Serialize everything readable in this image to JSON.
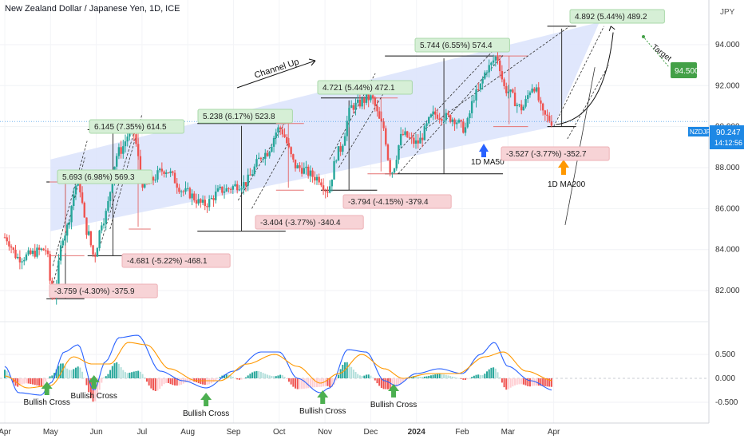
{
  "header": {
    "title": "New Zealand Dollar / Japanese Yen, 1D, ICE",
    "currency": "JPY"
  },
  "price_tag": {
    "symbol": "NZDJPY",
    "price": "90.247",
    "countdown": "14:12:56"
  },
  "target_tag": {
    "label": "Target",
    "value": "94.500"
  },
  "annotations": {
    "channel_up": "Channel Up",
    "ma50": "1D MA50",
    "ma200": "1D MA200",
    "bullish_cross": "Bullish Cross"
  },
  "measures": {
    "rises": [
      "5.693 (6.98%) 569.3",
      "6.145 (7.35%) 614.5",
      "5.238 (6.17%) 523.8",
      "4.721 (5.44%) 472.1",
      "5.744 (6.55%) 574.4",
      "4.892 (5.44%) 489.2"
    ],
    "drops": [
      "-3.759 (-4.30%) -375.9",
      "-4.681 (-5.22%) -468.1",
      "-3.404 (-3.77%) -340.4",
      "-3.794 (-4.15%) -379.4",
      "-3.527 (-3.77%) -352.7"
    ]
  },
  "colors": {
    "up": "#26a69a",
    "down": "#ef5350",
    "channel": "#dbe3fb",
    "ma_fast": "#2962ff",
    "ma_slow": "#ff9800",
    "hist_up": "#26a69a",
    "hist_down": "#ef5350",
    "tag_blue": "#2962ff",
    "tag_green": "#43a047",
    "arrow_green": "#4caf50"
  },
  "chart_data": [
    {
      "type": "candlestick",
      "title": "New Zealand Dollar / Japanese Yen, 1D, ICE",
      "ylabel": "JPY",
      "x_ticks": [
        "Apr",
        "May",
        "Jun",
        "Jul",
        "Aug",
        "Sep",
        "Oct",
        "Nov",
        "Dec",
        "2024",
        "Feb",
        "Mar",
        "Apr"
      ],
      "y_ticks": [
        "82.000",
        "84.000",
        "86.000",
        "88.000",
        "90.000",
        "92.000",
        "94.000"
      ],
      "ylim": [
        80.6,
        95.4
      ],
      "anchors": [
        {
          "x": 0.0,
          "y": 84.6
        },
        {
          "x": 0.3,
          "y": 83.6
        },
        {
          "x": 0.9,
          "y": 84.0
        },
        {
          "x": 1.05,
          "y": 81.6
        },
        {
          "x": 1.3,
          "y": 84.8
        },
        {
          "x": 1.6,
          "y": 87.3
        },
        {
          "x": 1.8,
          "y": 84.9
        },
        {
          "x": 1.95,
          "y": 83.7
        },
        {
          "x": 2.15,
          "y": 85.5
        },
        {
          "x": 2.5,
          "y": 88.8
        },
        {
          "x": 2.78,
          "y": 89.85
        },
        {
          "x": 3.05,
          "y": 87.1
        },
        {
          "x": 3.5,
          "y": 87.9
        },
        {
          "x": 3.95,
          "y": 86.8
        },
        {
          "x": 4.35,
          "y": 86.2
        },
        {
          "x": 4.75,
          "y": 86.9
        },
        {
          "x": 5.2,
          "y": 87.2
        },
        {
          "x": 5.7,
          "y": 88.7
        },
        {
          "x": 6.0,
          "y": 89.9
        },
        {
          "x": 6.4,
          "y": 88.0
        },
        {
          "x": 6.85,
          "y": 87.5
        },
        {
          "x": 7.05,
          "y": 86.9
        },
        {
          "x": 7.3,
          "y": 88.8
        },
        {
          "x": 7.6,
          "y": 91.0
        },
        {
          "x": 8.0,
          "y": 91.4
        },
        {
          "x": 8.25,
          "y": 90.1
        },
        {
          "x": 8.45,
          "y": 87.8
        },
        {
          "x": 8.7,
          "y": 89.6
        },
        {
          "x": 9.0,
          "y": 89.2
        },
        {
          "x": 9.4,
          "y": 90.6
        },
        {
          "x": 9.8,
          "y": 90.4
        },
        {
          "x": 10.05,
          "y": 89.9
        },
        {
          "x": 10.3,
          "y": 91.6
        },
        {
          "x": 10.58,
          "y": 92.9
        },
        {
          "x": 10.75,
          "y": 93.4
        },
        {
          "x": 10.95,
          "y": 91.8
        },
        {
          "x": 11.3,
          "y": 90.9
        },
        {
          "x": 11.55,
          "y": 92.0
        },
        {
          "x": 11.8,
          "y": 90.5
        },
        {
          "x": 12.0,
          "y": 90.2
        }
      ],
      "channel": {
        "lower": [
          [
            1.0,
            84.9
          ],
          [
            12.0,
            90.0
          ]
        ],
        "upper": [
          [
            1.0,
            88.4
          ],
          [
            13.0,
            95.1
          ]
        ]
      },
      "rises": [
        {
          "x0": 1.05,
          "x1": 1.6,
          "low": 81.6,
          "high": 87.3,
          "label_index": 0
        },
        {
          "x0": 1.95,
          "x1": 2.78,
          "low": 83.7,
          "high": 89.85,
          "label_index": 1
        },
        {
          "x0": 4.35,
          "x1": 6.0,
          "low": 84.9,
          "high": 90.15,
          "label_index": 2
        },
        {
          "x0": 7.05,
          "x1": 8.0,
          "low": 86.9,
          "high": 91.4,
          "label_index": 3
        },
        {
          "x0": 8.45,
          "x1": 10.75,
          "low": 87.7,
          "high": 93.45,
          "label_index": 4
        },
        {
          "x0": 12.0,
          "x1": 12.35,
          "low": 90.0,
          "high": 94.9,
          "label_index": 5
        }
      ],
      "drops": [
        {
          "x0": 1.05,
          "x1": 1.6,
          "high": 87.3,
          "low": 83.7,
          "label_index": 0
        },
        {
          "x0": 2.78,
          "x1": 3.05,
          "high": 89.85,
          "low": 85.0,
          "label_index": 1
        },
        {
          "x0": 6.0,
          "x1": 6.4,
          "high": 90.15,
          "low": 86.9,
          "label_index": 2
        },
        {
          "x0": 8.0,
          "x1": 8.45,
          "high": 91.4,
          "low": 87.7,
          "label_index": 3
        },
        {
          "x0": 10.75,
          "x1": 11.3,
          "high": 93.45,
          "low": 90.0,
          "label_index": 4
        }
      ]
    },
    {
      "type": "bar",
      "title": "",
      "y_ticks": [
        "0.500",
        "0.000",
        "-0.500"
      ],
      "ylim": [
        -0.9,
        1.15
      ],
      "macd_anchors": [
        {
          "x": 0.0,
          "y": 0.25
        },
        {
          "x": 0.3,
          "y": -0.3
        },
        {
          "x": 0.8,
          "y": -0.35
        },
        {
          "x": 1.0,
          "y": -0.1
        },
        {
          "x": 1.3,
          "y": 0.55
        },
        {
          "x": 1.6,
          "y": 0.7
        },
        {
          "x": 1.95,
          "y": -0.25
        },
        {
          "x": 2.2,
          "y": 0.35
        },
        {
          "x": 2.5,
          "y": 0.85
        },
        {
          "x": 2.9,
          "y": 0.9
        },
        {
          "x": 3.4,
          "y": 0.15
        },
        {
          "x": 3.9,
          "y": -0.05
        },
        {
          "x": 4.4,
          "y": -0.2
        },
        {
          "x": 5.0,
          "y": 0.15
        },
        {
          "x": 5.6,
          "y": 0.55
        },
        {
          "x": 6.0,
          "y": 0.55
        },
        {
          "x": 6.4,
          "y": 0.0
        },
        {
          "x": 6.9,
          "y": -0.3
        },
        {
          "x": 7.1,
          "y": -0.2
        },
        {
          "x": 7.5,
          "y": 0.6
        },
        {
          "x": 7.9,
          "y": 0.55
        },
        {
          "x": 8.3,
          "y": -0.05
        },
        {
          "x": 8.55,
          "y": -0.15
        },
        {
          "x": 9.0,
          "y": 0.1
        },
        {
          "x": 9.5,
          "y": 0.2
        },
        {
          "x": 10.0,
          "y": 0.1
        },
        {
          "x": 10.4,
          "y": 0.5
        },
        {
          "x": 10.7,
          "y": 0.75
        },
        {
          "x": 11.0,
          "y": 0.25
        },
        {
          "x": 11.5,
          "y": -0.05
        },
        {
          "x": 12.0,
          "y": -0.25
        }
      ],
      "signal_anchors": [
        {
          "x": 0.0,
          "y": 0.05
        },
        {
          "x": 0.5,
          "y": -0.2
        },
        {
          "x": 1.0,
          "y": -0.15
        },
        {
          "x": 1.5,
          "y": 0.45
        },
        {
          "x": 1.9,
          "y": 0.3
        },
        {
          "x": 2.3,
          "y": 0.3
        },
        {
          "x": 2.7,
          "y": 0.75
        },
        {
          "x": 3.1,
          "y": 0.7
        },
        {
          "x": 3.6,
          "y": 0.2
        },
        {
          "x": 4.2,
          "y": -0.05
        },
        {
          "x": 4.7,
          "y": -0.05
        },
        {
          "x": 5.3,
          "y": 0.3
        },
        {
          "x": 5.9,
          "y": 0.5
        },
        {
          "x": 6.4,
          "y": 0.25
        },
        {
          "x": 6.9,
          "y": -0.1
        },
        {
          "x": 7.3,
          "y": 0.1
        },
        {
          "x": 7.8,
          "y": 0.5
        },
        {
          "x": 8.3,
          "y": 0.2
        },
        {
          "x": 8.7,
          "y": 0.0
        },
        {
          "x": 9.3,
          "y": 0.1
        },
        {
          "x": 9.9,
          "y": 0.1
        },
        {
          "x": 10.5,
          "y": 0.45
        },
        {
          "x": 10.9,
          "y": 0.55
        },
        {
          "x": 11.4,
          "y": 0.15
        },
        {
          "x": 12.0,
          "y": -0.05
        }
      ],
      "bullish_cross_x": [
        0.92,
        1.95,
        4.4,
        6.95,
        8.5
      ]
    }
  ]
}
